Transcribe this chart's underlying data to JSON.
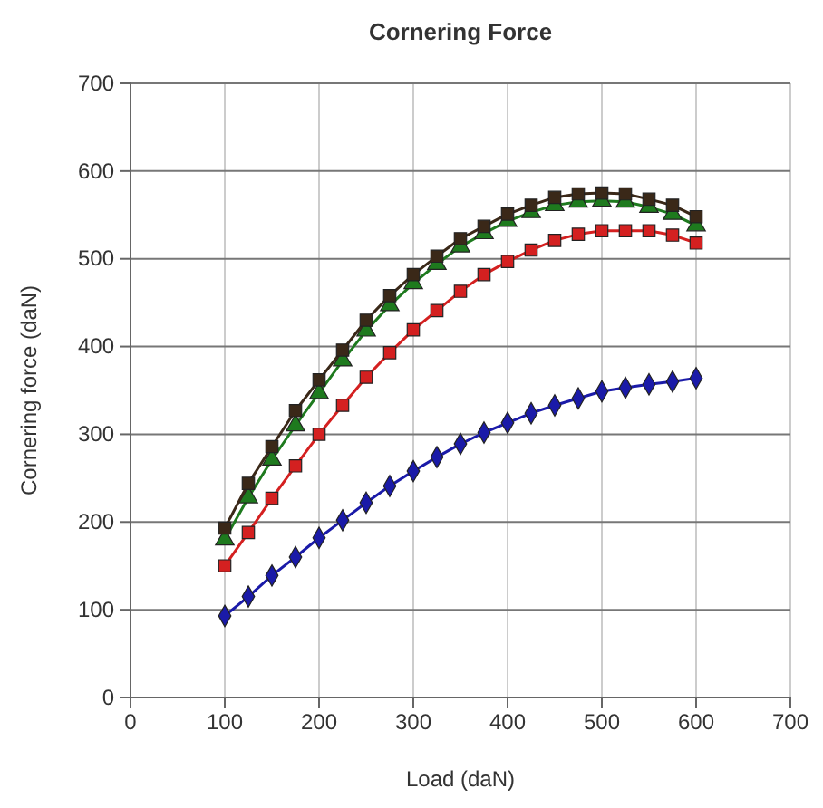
{
  "chart_data": {
    "type": "line",
    "title": "Cornering Force",
    "xlabel": "Load (daN)",
    "ylabel": "Cornering force (daN)",
    "x": [
      100,
      125,
      150,
      175,
      200,
      225,
      250,
      275,
      300,
      325,
      350,
      375,
      400,
      425,
      450,
      475,
      500,
      525,
      550,
      575,
      600
    ],
    "xlim": [
      0,
      700
    ],
    "xticks": [
      0,
      100,
      200,
      300,
      400,
      500,
      600,
      700
    ],
    "ylim": [
      0,
      700
    ],
    "yticks": [
      0,
      100,
      200,
      300,
      400,
      500,
      600,
      700
    ],
    "grid": true,
    "series": [
      {
        "color": "#1a1aa8",
        "marker": "diamond",
        "values": [
          93,
          115,
          139,
          160,
          182,
          202,
          222,
          241,
          258,
          274,
          289,
          302,
          313,
          324,
          333,
          341,
          349,
          353,
          357,
          360,
          364
        ]
      },
      {
        "color": "#d42020",
        "marker": "square",
        "values": [
          150,
          188,
          227,
          264,
          300,
          333,
          365,
          393,
          419,
          441,
          463,
          482,
          497,
          510,
          521,
          528,
          532,
          532,
          532,
          527,
          518
        ]
      },
      {
        "color": "#1e7a1e",
        "marker": "triangle",
        "values": [
          180,
          228,
          271,
          310,
          347,
          384,
          418,
          447,
          472,
          494,
          514,
          529,
          543,
          553,
          561,
          565,
          566,
          565,
          559,
          551,
          538
        ]
      },
      {
        "color": "#3a2818",
        "marker": "square",
        "values": [
          193,
          244,
          286,
          327,
          362,
          396,
          430,
          458,
          482,
          503,
          523,
          537,
          551,
          561,
          570,
          574,
          575,
          574,
          568,
          561,
          548
        ]
      }
    ]
  }
}
